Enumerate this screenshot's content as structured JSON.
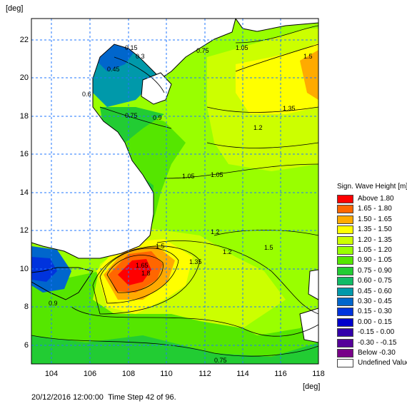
{
  "map": {
    "y_unit": "[deg]",
    "x_unit": "[deg]",
    "y_ticks": [
      "22",
      "20",
      "18",
      "16",
      "14",
      "12",
      "10",
      "8",
      "6"
    ],
    "x_ticks": [
      "104",
      "106",
      "108",
      "110",
      "112",
      "114",
      "116",
      "118"
    ],
    "x_range": [
      103,
      118
    ],
    "y_range": [
      5,
      23
    ],
    "contour_labels": [
      "0.3",
      "0.15",
      "0.45",
      "0.6",
      "0.75",
      "0.9",
      "1.05",
      "1.2",
      "1.35",
      "1.5",
      "1.65",
      "1.8",
      "0.75",
      "1.05",
      "1.35",
      "1.5",
      "1.2",
      "1.05",
      "0.9",
      "0.75",
      "1.2",
      "1.5"
    ]
  },
  "legend": {
    "title": "Sign. Wave Height [m]",
    "items": [
      {
        "label": "Above  1.80",
        "color": "#ff0000"
      },
      {
        "label": "1.65 - 1.80",
        "color": "#ff6600"
      },
      {
        "label": "1.50 - 1.65",
        "color": "#ffaa00"
      },
      {
        "label": "1.35 - 1.50",
        "color": "#ffff00"
      },
      {
        "label": "1.20 - 1.35",
        "color": "#ccff00"
      },
      {
        "label": "1.05 - 1.20",
        "color": "#99ff00"
      },
      {
        "label": "0.90 - 1.05",
        "color": "#55e600"
      },
      {
        "label": "0.75 - 0.90",
        "color": "#22cc33"
      },
      {
        "label": "0.60 - 0.75",
        "color": "#11bb66"
      },
      {
        "label": "0.45 - 0.60",
        "color": "#0099aa"
      },
      {
        "label": "0.30 - 0.45",
        "color": "#0066cc"
      },
      {
        "label": "0.15 - 0.30",
        "color": "#0033dd"
      },
      {
        "label": "0.00 - 0.15",
        "color": "#0000cc"
      },
      {
        "label": "-0.15 - 0.00",
        "color": "#3300aa"
      },
      {
        "label": "-0.30 - -0.15",
        "color": "#550099"
      },
      {
        "label": "Below -0.30",
        "color": "#770088"
      },
      {
        "label": "Undefined Value",
        "color": "#ffffff"
      }
    ]
  },
  "footer": {
    "timestamp": "20/12/2016 12:00:00",
    "time_step": "Time Step 42 of 96."
  }
}
